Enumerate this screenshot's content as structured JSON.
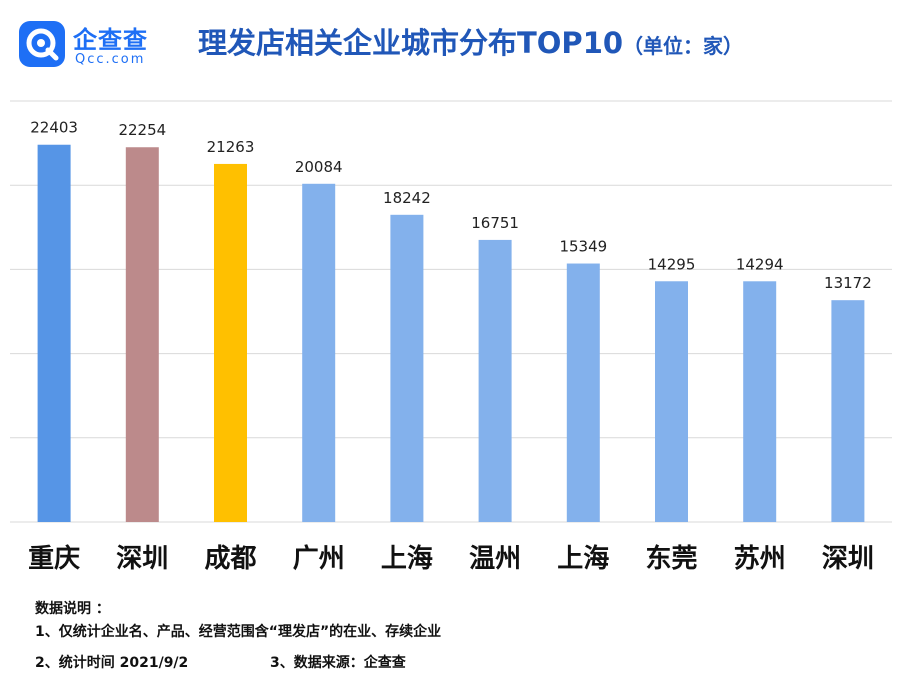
{
  "logo": {
    "name": "企查查",
    "domain": "Qcc.com",
    "brand_color": "#1e6ff5"
  },
  "title": "理发店相关企业城市分布TOP10",
  "unit": "（单位：家）",
  "chart_data": {
    "type": "bar",
    "title": "理发店相关企业城市分布TOP10",
    "unit": "（单位：家）",
    "categories": [
      "重庆",
      "深圳",
      "成都",
      "广州",
      "上海",
      "温州",
      "上海",
      "东莞",
      "苏州",
      "深圳"
    ],
    "values": [
      22403,
      22254,
      21263,
      20084,
      18242,
      16751,
      15349,
      14295,
      14294,
      13172
    ],
    "colors": [
      "#5695e6",
      "#bc8a8b",
      "#ffc000",
      "#83b1ec",
      "#83b1ec",
      "#83b1ec",
      "#83b1ec",
      "#83b1ec",
      "#83b1ec",
      "#83b1ec"
    ],
    "ylim": [
      0,
      25000
    ],
    "grid": true,
    "legend": "none",
    "axis_tick_labels_shown": false
  },
  "notes": {
    "heading": "数据说明 ：",
    "line1": "1、仅统计企业名、产品、经营范围含“理发店”的在业、存续企业",
    "line2_part1": "2、统计时间 2021/9/2",
    "line2_part2": "3、数据来源：企查查"
  }
}
